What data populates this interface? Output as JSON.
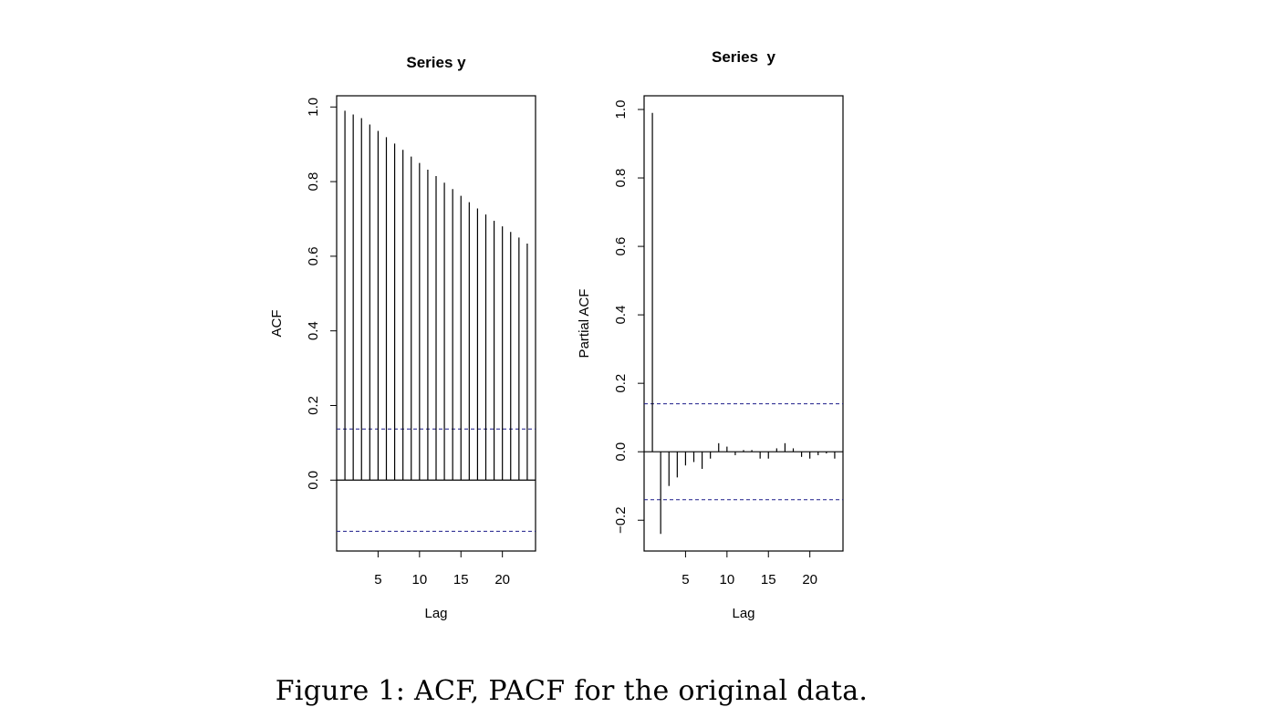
{
  "chart_data": [
    {
      "type": "bar",
      "title": "Series y",
      "xlabel": "Lag",
      "ylabel": "ACF",
      "x_ticks": [
        5,
        10,
        15,
        20
      ],
      "y_ticks": [
        "0.0",
        "0.2",
        "0.4",
        "0.6",
        "0.8",
        "1.0"
      ],
      "xlim": [
        0,
        24
      ],
      "ylim": [
        -0.19,
        1.03
      ],
      "confidence_bound": 0.137,
      "lags": [
        1,
        2,
        3,
        4,
        5,
        6,
        7,
        8,
        9,
        10,
        11,
        12,
        13,
        14,
        15,
        16,
        17,
        18,
        19,
        20,
        21,
        22,
        23
      ],
      "values": [
        0.99,
        0.98,
        0.97,
        0.953,
        0.936,
        0.919,
        0.902,
        0.885,
        0.867,
        0.85,
        0.832,
        0.815,
        0.797,
        0.78,
        0.762,
        0.745,
        0.728,
        0.712,
        0.695,
        0.68,
        0.665,
        0.65,
        0.634
      ]
    },
    {
      "type": "bar",
      "title": "Series  y",
      "xlabel": "Lag",
      "ylabel": "Partial ACF",
      "x_ticks": [
        5,
        10,
        15,
        20
      ],
      "y_ticks": [
        "−0.2",
        "0.0",
        "0.2",
        "0.4",
        "0.6",
        "0.8",
        "1.0"
      ],
      "xlim": [
        0,
        24
      ],
      "ylim": [
        -0.29,
        1.04
      ],
      "confidence_bound": 0.14,
      "lags": [
        1,
        2,
        3,
        4,
        5,
        6,
        7,
        8,
        9,
        10,
        11,
        12,
        13,
        14,
        15,
        16,
        17,
        18,
        19,
        20,
        21,
        22,
        23
      ],
      "values": [
        0.99,
        -0.24,
        -0.1,
        -0.075,
        -0.04,
        -0.03,
        -0.05,
        -0.02,
        0.025,
        0.015,
        -0.01,
        0.005,
        0.005,
        -0.02,
        -0.02,
        0.01,
        0.025,
        0.01,
        -0.015,
        -0.02,
        -0.01,
        -0.005,
        -0.02
      ]
    }
  ],
  "caption": "Figure 1: ACF, PACF for the original data."
}
